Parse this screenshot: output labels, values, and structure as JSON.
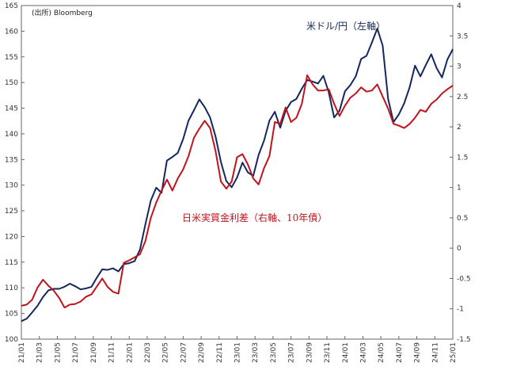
{
  "chart_data": {
    "type": "line",
    "source": "(出所) Bloomberg",
    "x_tick_labels": [
      "21/01",
      "21/03",
      "21/05",
      "21/07",
      "21/09",
      "21/11",
      "22/01",
      "22/03",
      "22/05",
      "22/07",
      "22/09",
      "22/11",
      "23/01",
      "23/03",
      "23/05",
      "23/07",
      "23/09",
      "23/11",
      "24/01",
      "24/03",
      "24/05",
      "24/07",
      "24/09",
      "24/11",
      "25/01"
    ],
    "left_axis": {
      "ylim": [
        100,
        165
      ],
      "ticks": [
        100,
        105,
        110,
        115,
        120,
        125,
        130,
        135,
        140,
        145,
        150,
        155,
        160,
        165
      ]
    },
    "right_axis": {
      "ylim": [
        -1.5,
        4
      ],
      "ticks": [
        "-1.5",
        "-1",
        "-0.5",
        "0",
        "0.5",
        "1",
        "1.5",
        "2",
        "2.5",
        "3",
        "3.5",
        "4"
      ]
    },
    "grid": false,
    "series": [
      {
        "name": "米ドル/円（左軸）",
        "axis": "left",
        "color": "#14275e",
        "x": [
          0,
          0.3,
          0.6,
          0.9,
          1.2,
          1.5,
          1.8,
          2.1,
          2.4,
          2.7,
          3.0,
          3.3,
          3.6,
          3.9,
          4.2,
          4.5,
          4.8,
          5.1,
          5.4,
          5.7,
          6.0,
          6.3,
          6.6,
          6.9,
          7.2,
          7.5,
          7.8,
          8.1,
          8.4,
          8.7,
          9.0,
          9.3,
          9.6,
          9.9,
          10.2,
          10.5,
          10.8,
          11.1,
          11.4,
          11.7,
          12.0,
          12.3,
          12.6,
          12.9,
          13.2,
          13.5,
          13.8,
          14.1,
          14.4,
          14.7,
          15.0,
          15.3,
          15.6,
          15.9,
          16.2,
          16.5,
          16.8,
          17.1,
          17.4,
          17.7,
          18.0,
          18.3,
          18.6,
          18.9,
          19.2,
          19.5,
          19.8,
          20.1,
          20.4,
          20.7,
          21.0,
          21.3,
          21.6,
          21.9,
          22.2,
          22.5,
          22.8,
          23.1,
          23.4,
          23.7,
          24.0
        ],
        "values": [
          103.5,
          104.0,
          105.2,
          106.5,
          108.2,
          109.5,
          109.8,
          109.8,
          110.2,
          110.8,
          110.3,
          109.7,
          109.9,
          110.2,
          112.0,
          113.6,
          113.5,
          113.8,
          113.2,
          114.6,
          114.8,
          115.2,
          117.5,
          122.4,
          127.0,
          129.5,
          128.5,
          134.8,
          135.5,
          136.3,
          139.0,
          142.6,
          144.6,
          146.7,
          145.2,
          143.2,
          139.5,
          134.5,
          130.8,
          129.6,
          131.5,
          134.4,
          132.5,
          131.8,
          135.9,
          138.7,
          142.6,
          144.3,
          141.2,
          144.5,
          146.2,
          146.8,
          148.8,
          150.5,
          150.2,
          149.8,
          151.3,
          148.1,
          143.2,
          144.5,
          148.3,
          149.5,
          151.2,
          154.6,
          155.2,
          157.8,
          160.5,
          157.2,
          146.8,
          142.3,
          143.8,
          146.0,
          149.1,
          153.3,
          151.2,
          153.4,
          155.5,
          152.8,
          151.0,
          154.5,
          156.5
        ]
      },
      {
        "name": "日米実質金利差（右軸、10年債）",
        "axis": "right",
        "color": "#c0141c",
        "x": [
          0,
          0.3,
          0.6,
          0.9,
          1.2,
          1.5,
          1.8,
          2.1,
          2.4,
          2.7,
          3.0,
          3.3,
          3.6,
          3.9,
          4.2,
          4.5,
          4.8,
          5.1,
          5.4,
          5.7,
          6.0,
          6.3,
          6.6,
          6.9,
          7.2,
          7.5,
          7.8,
          8.1,
          8.4,
          8.7,
          9.0,
          9.3,
          9.6,
          9.9,
          10.2,
          10.5,
          10.8,
          11.1,
          11.4,
          11.7,
          12.0,
          12.3,
          12.6,
          12.9,
          13.2,
          13.5,
          13.8,
          14.1,
          14.4,
          14.7,
          15.0,
          15.3,
          15.6,
          15.9,
          16.2,
          16.5,
          16.8,
          17.1,
          17.4,
          17.7,
          18.0,
          18.3,
          18.6,
          18.9,
          19.2,
          19.5,
          19.8,
          20.1,
          20.4,
          20.7,
          21.0,
          21.3,
          21.6,
          21.9,
          22.2,
          22.5,
          22.8,
          23.1,
          23.4,
          23.7,
          24.0
        ],
        "values": [
          -0.95,
          -0.93,
          -0.85,
          -0.65,
          -0.52,
          -0.62,
          -0.7,
          -0.82,
          -0.98,
          -0.93,
          -0.92,
          -0.88,
          -0.8,
          -0.76,
          -0.63,
          -0.5,
          -0.64,
          -0.72,
          -0.75,
          -0.24,
          -0.2,
          -0.15,
          -0.1,
          0.12,
          0.5,
          0.75,
          0.95,
          1.13,
          0.95,
          1.15,
          1.3,
          1.52,
          1.82,
          1.97,
          2.1,
          1.98,
          1.6,
          1.1,
          0.98,
          1.1,
          1.5,
          1.55,
          1.38,
          1.15,
          1.05,
          1.32,
          1.52,
          2.08,
          2.05,
          2.32,
          2.08,
          2.15,
          2.38,
          2.85,
          2.7,
          2.6,
          2.6,
          2.62,
          2.38,
          2.18,
          2.35,
          2.48,
          2.55,
          2.65,
          2.58,
          2.6,
          2.7,
          2.5,
          2.3,
          2.05,
          2.02,
          1.98,
          2.05,
          2.15,
          2.28,
          2.25,
          2.38,
          2.45,
          2.55,
          2.62,
          2.68
        ]
      }
    ]
  }
}
